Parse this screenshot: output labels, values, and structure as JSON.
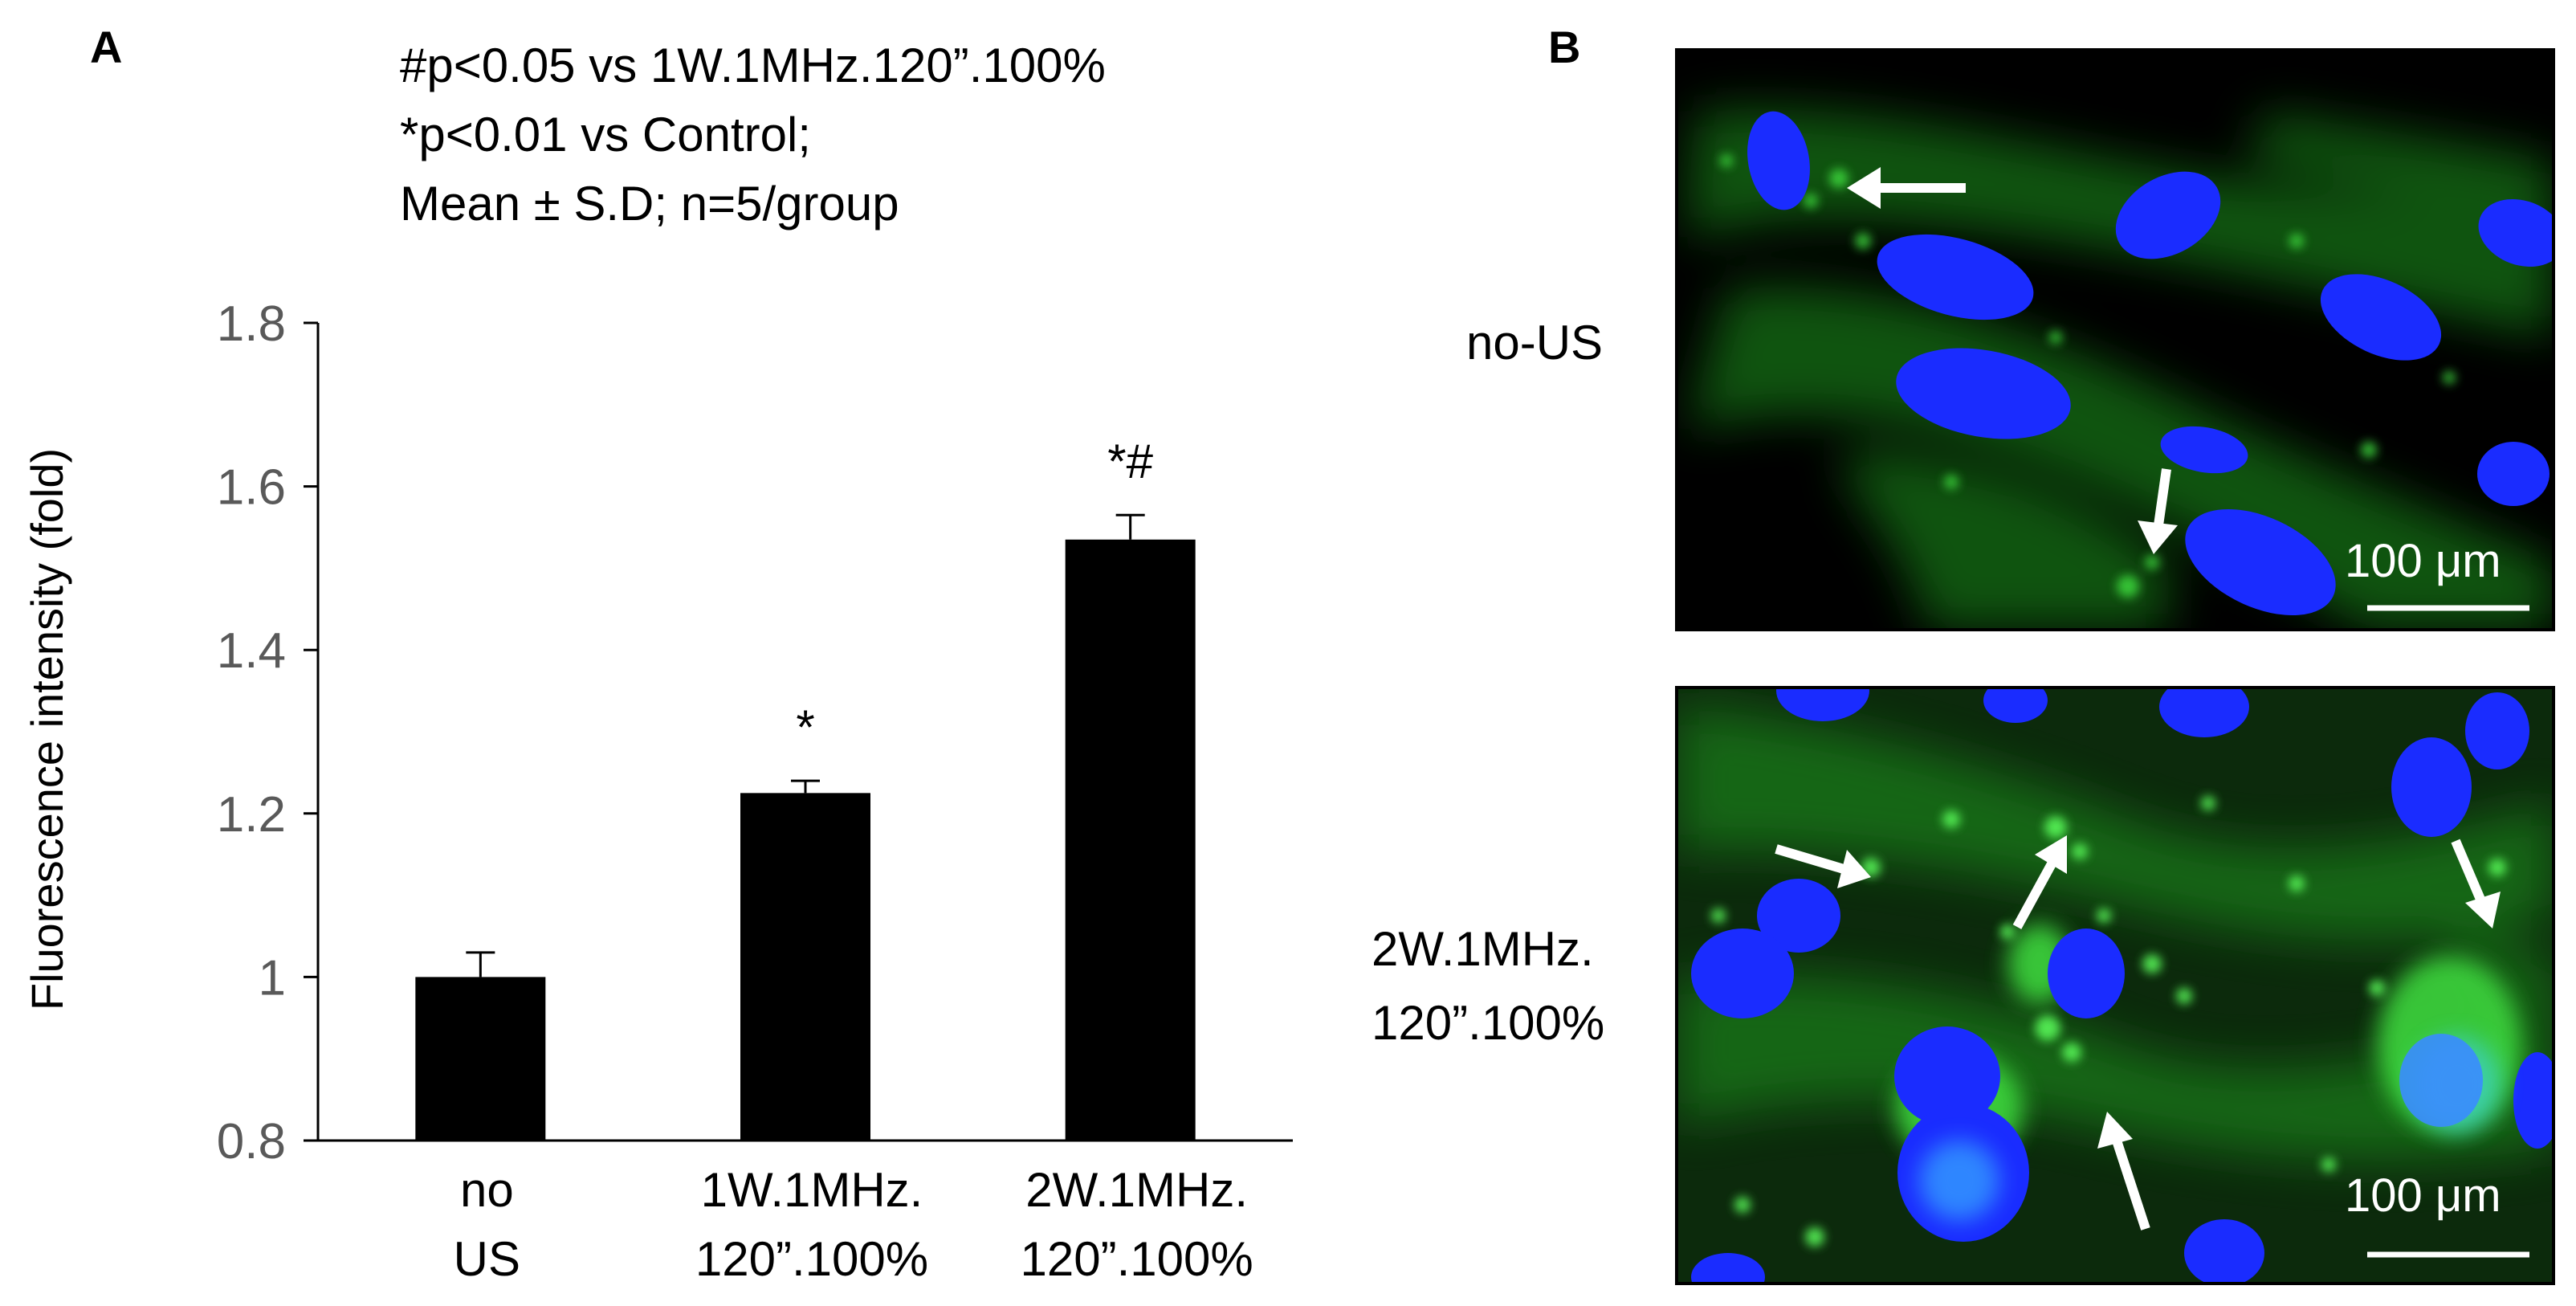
{
  "panels": {
    "a_label": "A",
    "b_label": "B"
  },
  "notes": [
    "#p<0.05 vs 1W.1MHz.120”.100%",
    "*p<0.01 vs Control;",
    "Mean ± S.D; n=5/group"
  ],
  "chart_data": {
    "type": "bar",
    "categories": [
      [
        "no",
        "US"
      ],
      [
        "1W.1MHz.",
        "120”.100%"
      ],
      [
        "2W.1MHz.",
        "120”.100%"
      ]
    ],
    "values": [
      1.0,
      1.225,
      1.535
    ],
    "errors": [
      0.03,
      0.015,
      0.03
    ],
    "significance": [
      "",
      "*",
      "*#"
    ],
    "ylabel": "Fluorescence intensity (fold)",
    "xlabel": "",
    "ylim": [
      0.8,
      1.8
    ],
    "yticks": [
      0.8,
      1,
      1.2,
      1.4,
      1.6,
      1.8
    ],
    "ytick_labels": [
      "0.8",
      "1",
      "1.2",
      "1.4",
      "1.6",
      "1.8"
    ],
    "grid": false,
    "bar_color": "#000000",
    "axis_color": "#000000",
    "tick_label_color": "#595959"
  },
  "images": [
    {
      "label": "no-US",
      "scalebar": "100 μm",
      "nucleus_color": "#1a2cff",
      "stain_color": "#2fd32f",
      "background": "#000000"
    },
    {
      "label_lines": [
        "2W.1MHz.",
        "120”.100%"
      ],
      "scalebar": "100 μm",
      "nucleus_color": "#1a2cff",
      "stain_color": "#34d634",
      "background": "#0b1a0b"
    }
  ]
}
